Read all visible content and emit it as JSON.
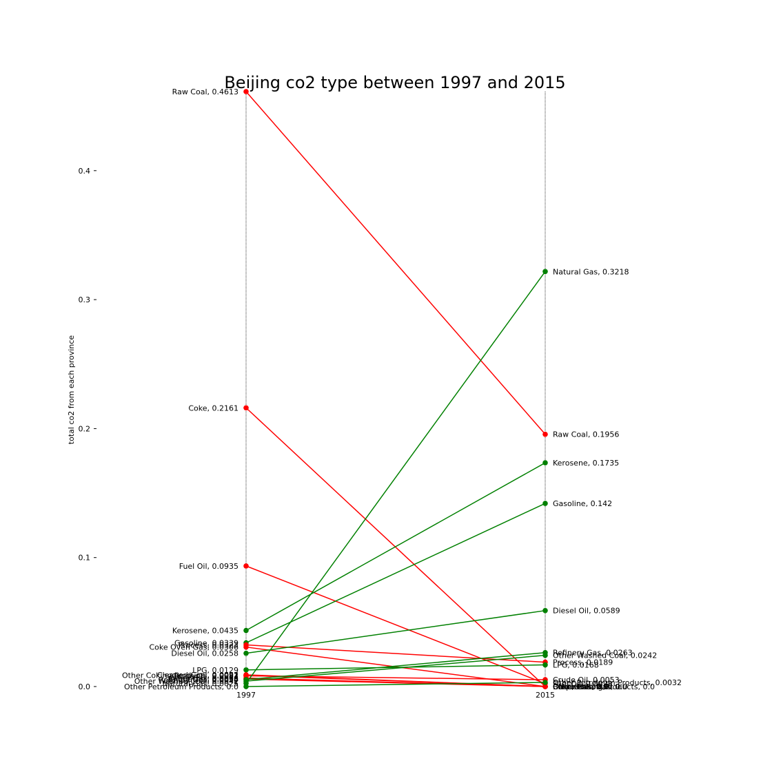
{
  "chart_data": {
    "type": "line",
    "title": "Beijing co2 type between 1997 and 2015",
    "xlabel": "",
    "ylabel": "total co2 from each province",
    "x": [
      "1997",
      "2015"
    ],
    "ylim": [
      0.0,
      0.4613
    ],
    "yticks": [
      "0.0",
      "0.1",
      "0.2",
      "0.3",
      "0.4"
    ],
    "colors": {
      "decrease": "#ff0000",
      "increase": "#008000",
      "guide": "#000000"
    },
    "series": [
      {
        "name": "Raw Coal",
        "values": [
          0.4613,
          0.1956
        ]
      },
      {
        "name": "Coke",
        "values": [
          0.2161,
          0.0
        ]
      },
      {
        "name": "Fuel Oil",
        "values": [
          0.0935,
          0.0023
        ]
      },
      {
        "name": "Kerosene",
        "values": [
          0.0435,
          0.1735
        ]
      },
      {
        "name": "Gasoline",
        "values": [
          0.0339,
          0.142
        ]
      },
      {
        "name": "Process",
        "values": [
          0.0323,
          0.0189
        ]
      },
      {
        "name": "Coke Oven Gas",
        "values": [
          0.0306,
          0.0
        ]
      },
      {
        "name": "Diesel Oil",
        "values": [
          0.0258,
          0.0589
        ]
      },
      {
        "name": "LPG",
        "values": [
          0.0129,
          0.0168
        ]
      },
      {
        "name": "Cleaned Coal",
        "values": [
          0.0091,
          0.0
        ]
      },
      {
        "name": "Crude Oil",
        "values": [
          0.0083,
          0.0053
        ]
      },
      {
        "name": "Other Coking Products",
        "values": [
          0.0087,
          0.0
        ]
      },
      {
        "name": "Other Gas",
        "values": [
          0.0066,
          0.0
        ]
      },
      {
        "name": "Briquettes",
        "values": [
          0.0058,
          0.0
        ]
      },
      {
        "name": "Refinery Gas",
        "values": [
          0.0054,
          0.0263
        ]
      },
      {
        "name": "Other Washed Coal",
        "values": [
          0.0042,
          0.0242
        ]
      },
      {
        "name": "Natural Gas",
        "values": [
          0.0025,
          0.3218
        ]
      },
      {
        "name": "Other Petroleum Products",
        "values": [
          0.0,
          0.0032
        ]
      }
    ],
    "left_labels": [
      "Raw Coal, 0.4613",
      "Coke, 0.2161",
      "Fuel Oil, 0.0935",
      "Kerosene, 0.0435",
      "Gasoline, 0.0339",
      "Process, 0.0323",
      "Coke Oven Gas, 0.0306",
      "Diesel Oil, 0.0258",
      "LPG, 0.0129",
      "Cleaned Coal, 0.0091",
      "Crude Oil, 0.0083",
      "Other Coking Products, 0.0087",
      "Other Gas, 0.0066",
      "Briquettes, 0.0058",
      "Refinery Gas, 0.0054",
      "Other Washed Coal, 0.0042",
      "Natural Gas, 0.0025",
      "Other Petroleum Products, 0.0"
    ],
    "right_labels": [
      "Raw Coal, 0.1956",
      "Coke, 0.0",
      "Fuel Oil, 0.0023",
      "Kerosene, 0.1735",
      "Gasoline, 0.142",
      "Process, 0.0189",
      "Coke Oven Gas, 0.0",
      "Diesel Oil, 0.0589",
      "LPG, 0.0168",
      "Cleaned Coal, 0.0",
      "Crude Oil, 0.0053",
      "Other Coking Products, 0.0",
      "Other Gas, 0.0",
      "Briquettes, 0.0",
      "Refinery Gas, 0.0263",
      "Other Washed Coal, 0.0242",
      "Natural Gas, 0.3218",
      "Other Petroleum Products, 0.0032"
    ]
  }
}
